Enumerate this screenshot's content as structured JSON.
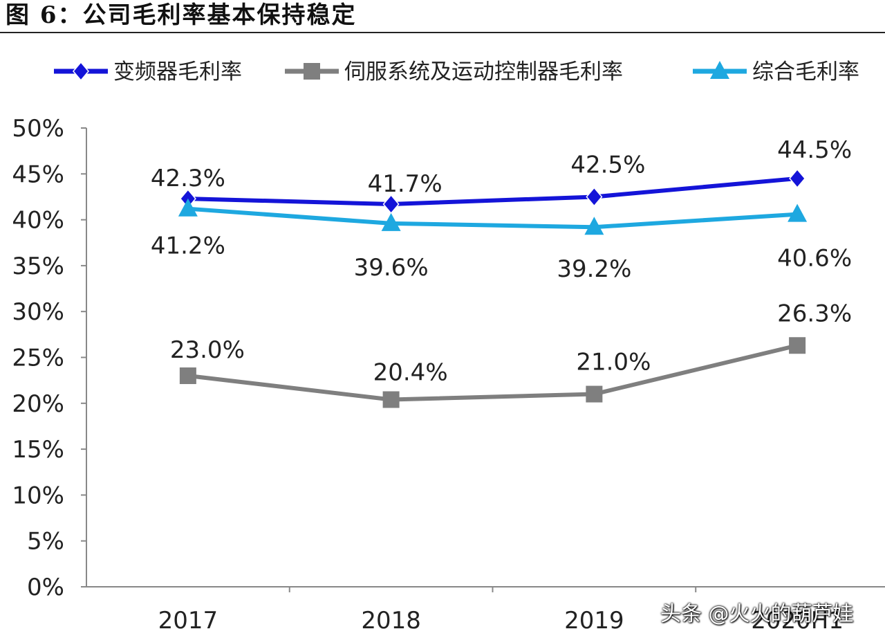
{
  "figure": {
    "title": "图 6：公司毛利率基本保持稳定",
    "watermark": "头条 @火火的葫芦娃"
  },
  "chart_data": {
    "type": "line",
    "title": "",
    "xlabel": "",
    "ylabel": "",
    "categories": [
      "2017",
      "2018",
      "2019",
      "2020H1"
    ],
    "ylim": [
      0,
      50
    ],
    "yticks": [
      "0%",
      "5%",
      "10%",
      "15%",
      "20%",
      "25%",
      "30%",
      "35%",
      "40%",
      "45%",
      "50%"
    ],
    "grid": false,
    "legend": "top",
    "series": [
      {
        "name": "变频器毛利率",
        "marker": "diamond",
        "color": "#1414d8",
        "values": [
          42.3,
          41.7,
          42.5,
          44.5
        ],
        "labels": [
          "42.3%",
          "41.7%",
          "42.5%",
          "44.5%"
        ]
      },
      {
        "name": "伺服系统及运动控制器毛利率",
        "marker": "square",
        "color": "#7f7f7f",
        "values": [
          23.0,
          20.4,
          21.0,
          26.3
        ],
        "labels": [
          "23.0%",
          "20.4%",
          "21.0%",
          "26.3%"
        ]
      },
      {
        "name": "综合毛利率",
        "marker": "triangle",
        "color": "#1ea8e0",
        "values": [
          41.2,
          39.6,
          39.2,
          40.6
        ],
        "labels": [
          "41.2%",
          "39.6%",
          "39.2%",
          "40.6%"
        ]
      }
    ]
  }
}
